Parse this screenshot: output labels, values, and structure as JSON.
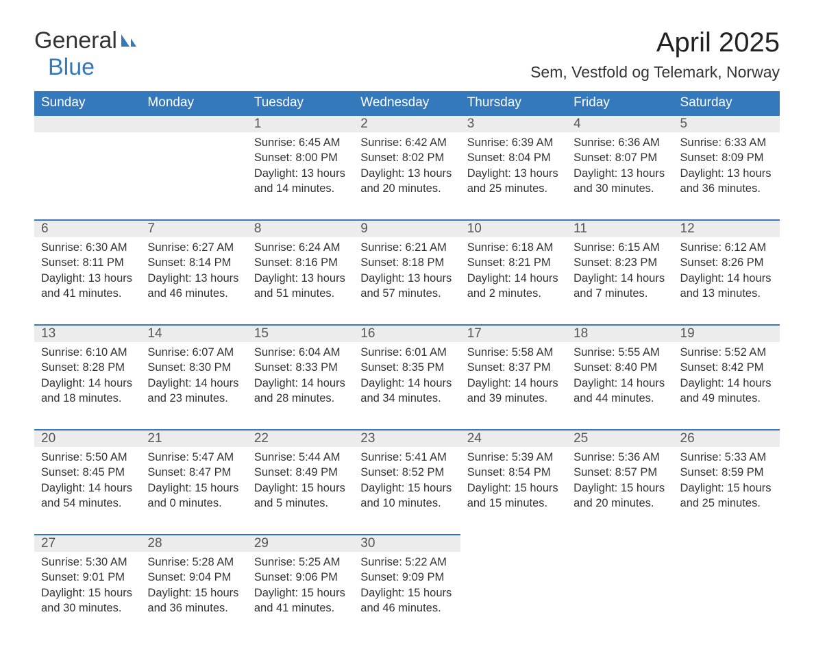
{
  "brand": {
    "part1": "General",
    "part2": "Blue",
    "icon_color": "#3579bd"
  },
  "title": "April 2025",
  "subtitle": "Sem, Vestfold og Telemark, Norway",
  "header_bg": "#3579bd",
  "header_fg": "#ffffff",
  "daynum_bg": "#ececec",
  "border_color": "#3579bd",
  "text_color": "#333333",
  "font_family": "Segoe UI, Arial, sans-serif",
  "title_fontsize": 40,
  "subtitle_fontsize": 23,
  "header_fontsize": 19,
  "body_fontsize": 16.5,
  "labels": {
    "sunrise": "Sunrise:",
    "sunset": "Sunset:",
    "daylight": "Daylight:"
  },
  "weekdays": [
    "Sunday",
    "Monday",
    "Tuesday",
    "Wednesday",
    "Thursday",
    "Friday",
    "Saturday"
  ],
  "weeks": [
    [
      null,
      null,
      {
        "n": "1",
        "sunrise": "6:45 AM",
        "sunset": "8:00 PM",
        "daylight": "13 hours and 14 minutes."
      },
      {
        "n": "2",
        "sunrise": "6:42 AM",
        "sunset": "8:02 PM",
        "daylight": "13 hours and 20 minutes."
      },
      {
        "n": "3",
        "sunrise": "6:39 AM",
        "sunset": "8:04 PM",
        "daylight": "13 hours and 25 minutes."
      },
      {
        "n": "4",
        "sunrise": "6:36 AM",
        "sunset": "8:07 PM",
        "daylight": "13 hours and 30 minutes."
      },
      {
        "n": "5",
        "sunrise": "6:33 AM",
        "sunset": "8:09 PM",
        "daylight": "13 hours and 36 minutes."
      }
    ],
    [
      {
        "n": "6",
        "sunrise": "6:30 AM",
        "sunset": "8:11 PM",
        "daylight": "13 hours and 41 minutes."
      },
      {
        "n": "7",
        "sunrise": "6:27 AM",
        "sunset": "8:14 PM",
        "daylight": "13 hours and 46 minutes."
      },
      {
        "n": "8",
        "sunrise": "6:24 AM",
        "sunset": "8:16 PM",
        "daylight": "13 hours and 51 minutes."
      },
      {
        "n": "9",
        "sunrise": "6:21 AM",
        "sunset": "8:18 PM",
        "daylight": "13 hours and 57 minutes."
      },
      {
        "n": "10",
        "sunrise": "6:18 AM",
        "sunset": "8:21 PM",
        "daylight": "14 hours and 2 minutes."
      },
      {
        "n": "11",
        "sunrise": "6:15 AM",
        "sunset": "8:23 PM",
        "daylight": "14 hours and 7 minutes."
      },
      {
        "n": "12",
        "sunrise": "6:12 AM",
        "sunset": "8:26 PM",
        "daylight": "14 hours and 13 minutes."
      }
    ],
    [
      {
        "n": "13",
        "sunrise": "6:10 AM",
        "sunset": "8:28 PM",
        "daylight": "14 hours and 18 minutes."
      },
      {
        "n": "14",
        "sunrise": "6:07 AM",
        "sunset": "8:30 PM",
        "daylight": "14 hours and 23 minutes."
      },
      {
        "n": "15",
        "sunrise": "6:04 AM",
        "sunset": "8:33 PM",
        "daylight": "14 hours and 28 minutes."
      },
      {
        "n": "16",
        "sunrise": "6:01 AM",
        "sunset": "8:35 PM",
        "daylight": "14 hours and 34 minutes."
      },
      {
        "n": "17",
        "sunrise": "5:58 AM",
        "sunset": "8:37 PM",
        "daylight": "14 hours and 39 minutes."
      },
      {
        "n": "18",
        "sunrise": "5:55 AM",
        "sunset": "8:40 PM",
        "daylight": "14 hours and 44 minutes."
      },
      {
        "n": "19",
        "sunrise": "5:52 AM",
        "sunset": "8:42 PM",
        "daylight": "14 hours and 49 minutes."
      }
    ],
    [
      {
        "n": "20",
        "sunrise": "5:50 AM",
        "sunset": "8:45 PM",
        "daylight": "14 hours and 54 minutes."
      },
      {
        "n": "21",
        "sunrise": "5:47 AM",
        "sunset": "8:47 PM",
        "daylight": "15 hours and 0 minutes."
      },
      {
        "n": "22",
        "sunrise": "5:44 AM",
        "sunset": "8:49 PM",
        "daylight": "15 hours and 5 minutes."
      },
      {
        "n": "23",
        "sunrise": "5:41 AM",
        "sunset": "8:52 PM",
        "daylight": "15 hours and 10 minutes."
      },
      {
        "n": "24",
        "sunrise": "5:39 AM",
        "sunset": "8:54 PM",
        "daylight": "15 hours and 15 minutes."
      },
      {
        "n": "25",
        "sunrise": "5:36 AM",
        "sunset": "8:57 PM",
        "daylight": "15 hours and 20 minutes."
      },
      {
        "n": "26",
        "sunrise": "5:33 AM",
        "sunset": "8:59 PM",
        "daylight": "15 hours and 25 minutes."
      }
    ],
    [
      {
        "n": "27",
        "sunrise": "5:30 AM",
        "sunset": "9:01 PM",
        "daylight": "15 hours and 30 minutes."
      },
      {
        "n": "28",
        "sunrise": "5:28 AM",
        "sunset": "9:04 PM",
        "daylight": "15 hours and 36 minutes."
      },
      {
        "n": "29",
        "sunrise": "5:25 AM",
        "sunset": "9:06 PM",
        "daylight": "15 hours and 41 minutes."
      },
      {
        "n": "30",
        "sunrise": "5:22 AM",
        "sunset": "9:09 PM",
        "daylight": "15 hours and 46 minutes."
      },
      null,
      null,
      null
    ]
  ]
}
